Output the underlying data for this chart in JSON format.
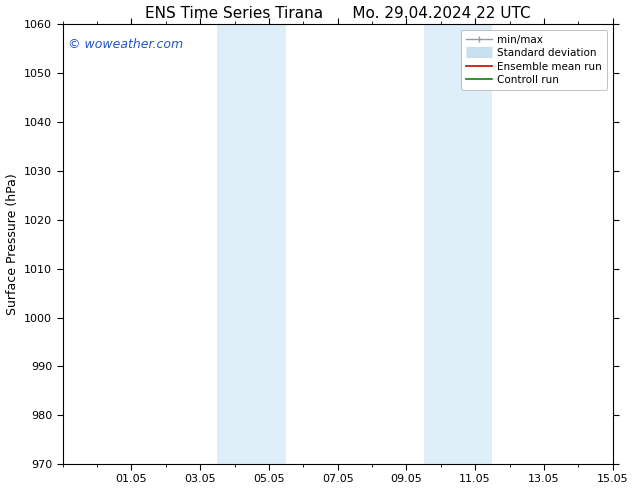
{
  "title_left": "ENS Time Series Tirana",
  "title_right": "Mo. 29.04.2024 22 UTC",
  "ylabel": "Surface Pressure (hPa)",
  "ylim": [
    970,
    1060
  ],
  "yticks": [
    970,
    980,
    990,
    1000,
    1010,
    1020,
    1030,
    1040,
    1050,
    1060
  ],
  "xlim": [
    0,
    16
  ],
  "xtick_labels": [
    "01.05",
    "03.05",
    "05.05",
    "07.05",
    "09.05",
    "11.05",
    "13.05",
    "15.05"
  ],
  "xtick_positions": [
    2,
    4,
    6,
    8,
    10,
    12,
    14,
    16
  ],
  "minor_xtick_positions": [
    0,
    1,
    2,
    3,
    4,
    5,
    6,
    7,
    8,
    9,
    10,
    11,
    12,
    13,
    14,
    15,
    16
  ],
  "shaded_bands": [
    {
      "x_start": 4.5,
      "x_end": 6.5
    },
    {
      "x_start": 10.5,
      "x_end": 12.5
    }
  ],
  "shaded_color": "#deeef8",
  "watermark_text": "© woweather.com",
  "watermark_color": "#2255cc",
  "legend_items": [
    {
      "label": "min/max",
      "color": "#999999",
      "linestyle": "-",
      "linewidth": 1.0
    },
    {
      "label": "Standard deviation",
      "color": "#c8dff0",
      "linestyle": "-",
      "linewidth": 8
    },
    {
      "label": "Ensemble mean run",
      "color": "#cc0000",
      "linestyle": "-",
      "linewidth": 1.2
    },
    {
      "label": "Controll run",
      "color": "#008800",
      "linestyle": "-",
      "linewidth": 1.2
    }
  ],
  "bg_color": "#ffffff",
  "tick_color": "#000000",
  "spine_color": "#000000",
  "title_fontsize": 11,
  "ylabel_fontsize": 9,
  "tick_fontsize": 8,
  "watermark_fontsize": 9,
  "legend_fontsize": 7.5
}
